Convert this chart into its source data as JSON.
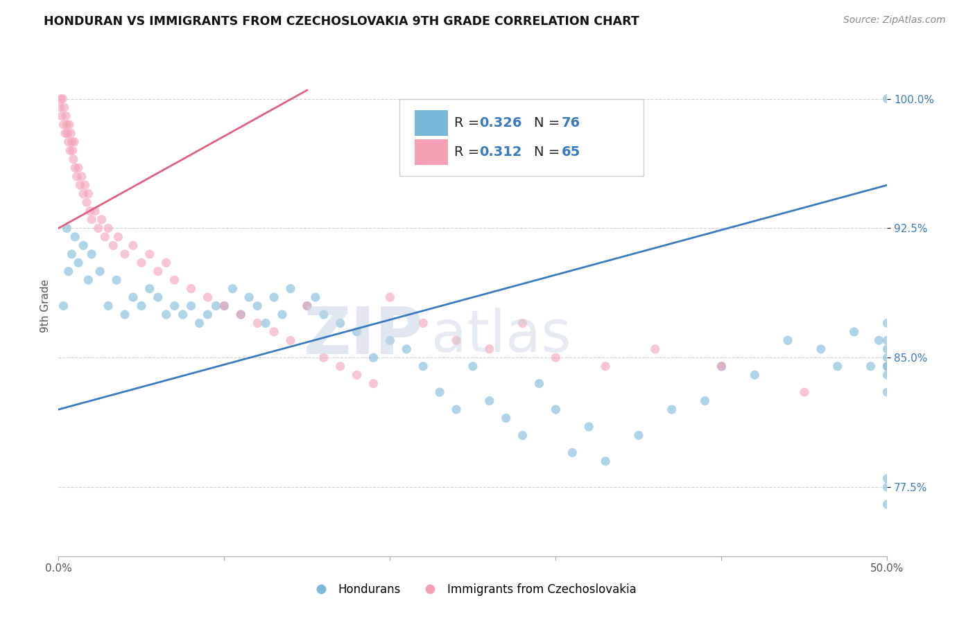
{
  "title": "HONDURAN VS IMMIGRANTS FROM CZECHOSLOVAKIA 9TH GRADE CORRELATION CHART",
  "source": "Source: ZipAtlas.com",
  "ylabel": "9th Grade",
  "xlim": [
    0.0,
    50.0
  ],
  "ylim": [
    73.5,
    102.5
  ],
  "ytick_values": [
    77.5,
    85.0,
    92.5,
    100.0
  ],
  "ytick_labels": [
    "77.5%",
    "85.0%",
    "92.5%",
    "100.0%"
  ],
  "blue_R": 0.326,
  "blue_N": 76,
  "pink_R": 0.312,
  "pink_N": 65,
  "blue_color": "#7ab8d9",
  "pink_color": "#f4a0b5",
  "blue_line_color": "#3a7abf",
  "pink_line_color": "#e06080",
  "legend_labels": [
    "Hondurans",
    "Immigrants from Czechoslovakia"
  ],
  "blue_scatter_x": [
    0.3,
    0.5,
    0.6,
    0.8,
    1.0,
    1.2,
    1.5,
    1.8,
    2.0,
    2.5,
    3.0,
    3.5,
    4.0,
    4.5,
    5.0,
    5.5,
    6.0,
    6.5,
    7.0,
    7.5,
    8.0,
    8.5,
    9.0,
    9.5,
    10.0,
    10.5,
    11.0,
    11.5,
    12.0,
    12.5,
    13.0,
    13.5,
    14.0,
    15.0,
    15.5,
    16.0,
    17.0,
    18.0,
    19.0,
    20.0,
    21.0,
    22.0,
    23.0,
    24.0,
    25.0,
    26.0,
    27.0,
    28.0,
    29.0,
    30.0,
    31.0,
    32.0,
    33.0,
    35.0,
    37.0,
    39.0,
    40.0,
    42.0,
    44.0,
    46.0,
    47.0,
    48.0,
    49.0,
    49.5,
    50.0,
    50.0,
    50.0,
    50.0,
    50.0,
    50.0,
    50.0,
    50.0,
    50.0,
    50.0,
    50.0,
    50.0
  ],
  "blue_scatter_y": [
    88.0,
    92.5,
    90.0,
    91.0,
    92.0,
    90.5,
    91.5,
    89.5,
    91.0,
    90.0,
    88.0,
    89.5,
    87.5,
    88.5,
    88.0,
    89.0,
    88.5,
    87.5,
    88.0,
    87.5,
    88.0,
    87.0,
    87.5,
    88.0,
    88.0,
    89.0,
    87.5,
    88.5,
    88.0,
    87.0,
    88.5,
    87.5,
    89.0,
    88.0,
    88.5,
    87.5,
    87.0,
    86.5,
    85.0,
    86.0,
    85.5,
    84.5,
    83.0,
    82.0,
    84.5,
    82.5,
    81.5,
    80.5,
    83.5,
    82.0,
    79.5,
    81.0,
    79.0,
    80.5,
    82.0,
    82.5,
    84.5,
    84.0,
    86.0,
    85.5,
    84.5,
    86.5,
    84.5,
    86.0,
    85.5,
    87.0,
    76.5,
    78.0,
    77.5,
    84.0,
    83.0,
    84.5,
    85.0,
    86.0,
    84.5,
    100.0
  ],
  "pink_scatter_x": [
    0.1,
    0.15,
    0.2,
    0.25,
    0.3,
    0.35,
    0.4,
    0.45,
    0.5,
    0.55,
    0.6,
    0.65,
    0.7,
    0.75,
    0.8,
    0.85,
    0.9,
    0.95,
    1.0,
    1.1,
    1.2,
    1.3,
    1.4,
    1.5,
    1.6,
    1.7,
    1.8,
    1.9,
    2.0,
    2.2,
    2.4,
    2.6,
    2.8,
    3.0,
    3.3,
    3.6,
    4.0,
    4.5,
    5.0,
    5.5,
    6.0,
    6.5,
    7.0,
    8.0,
    9.0,
    10.0,
    11.0,
    12.0,
    13.0,
    14.0,
    15.0,
    16.0,
    17.0,
    18.0,
    19.0,
    20.0,
    22.0,
    24.0,
    26.0,
    28.0,
    30.0,
    33.0,
    36.0,
    40.0,
    45.0
  ],
  "pink_scatter_y": [
    99.5,
    100.0,
    99.0,
    100.0,
    98.5,
    99.5,
    98.0,
    99.0,
    98.5,
    98.0,
    97.5,
    98.5,
    97.0,
    98.0,
    97.5,
    97.0,
    96.5,
    97.5,
    96.0,
    95.5,
    96.0,
    95.0,
    95.5,
    94.5,
    95.0,
    94.0,
    94.5,
    93.5,
    93.0,
    93.5,
    92.5,
    93.0,
    92.0,
    92.5,
    91.5,
    92.0,
    91.0,
    91.5,
    90.5,
    91.0,
    90.0,
    90.5,
    89.5,
    89.0,
    88.5,
    88.0,
    87.5,
    87.0,
    86.5,
    86.0,
    88.0,
    85.0,
    84.5,
    84.0,
    83.5,
    88.5,
    87.0,
    86.0,
    85.5,
    87.0,
    85.0,
    84.5,
    85.5,
    84.5,
    83.0
  ]
}
